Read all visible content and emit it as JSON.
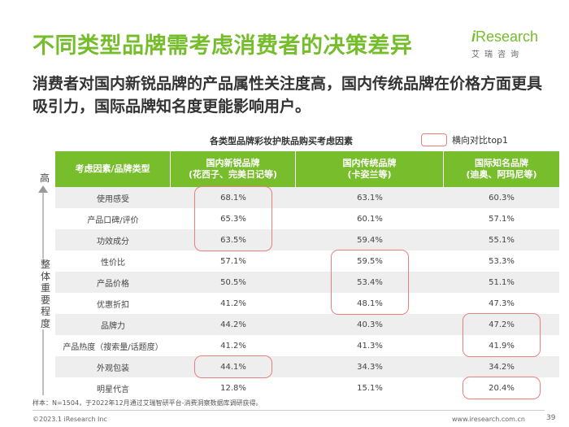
{
  "title": "不同类型品牌需考虑消费者的决策差异",
  "logo": {
    "main_i": "i",
    "main_rest": "Research",
    "sub": "艾瑞咨询"
  },
  "subtitle": "消费者对国内新锐品牌的产品属性关注度高，国内传统品牌在价格方面更具吸引力，国际品牌知名度更能影响用户。",
  "chart_title": "各类型品牌彩妆护肤品购买考虑因素",
  "legend": {
    "label": "横向对比top1",
    "color": "#e8817d"
  },
  "axis": {
    "top": "高",
    "label": "整体重要程度"
  },
  "colors": {
    "header": "#78bd2c",
    "title": "#76bd2c",
    "highlight": "#e8817d",
    "stripe": "#eeeeee"
  },
  "chart_data": {
    "type": "table",
    "title": "各类型品牌彩妆护肤品购买考虑因素",
    "columns": [
      {
        "line1": "考虑因素/品牌类型",
        "line2": ""
      },
      {
        "line1": "国内新锐品牌",
        "line2": "(花西子、完美日记等)"
      },
      {
        "line1": "国内传统品牌",
        "line2": "(卡姿兰等)"
      },
      {
        "line1": "国际知名品牌",
        "line2": "(迪奥、阿玛尼等)"
      }
    ],
    "rows": [
      {
        "factor": "使用感受",
        "values": [
          "68.1%",
          "63.1%",
          "60.3%"
        ]
      },
      {
        "factor": "产品口碑/评价",
        "values": [
          "65.3%",
          "60.1%",
          "57.1%"
        ]
      },
      {
        "factor": "功效成分",
        "values": [
          "63.5%",
          "59.4%",
          "55.1%"
        ]
      },
      {
        "factor": "性价比",
        "values": [
          "57.1%",
          "59.5%",
          "53.3%"
        ]
      },
      {
        "factor": "产品价格",
        "values": [
          "50.5%",
          "53.4%",
          "51.1%"
        ]
      },
      {
        "factor": "优惠折扣",
        "values": [
          "41.2%",
          "48.1%",
          "47.3%"
        ]
      },
      {
        "factor": "品牌力",
        "values": [
          "44.2%",
          "40.3%",
          "47.2%"
        ]
      },
      {
        "factor": "产品热度（搜索量/话题度）",
        "values": [
          "41.2%",
          "41.3%",
          "41.9%"
        ]
      },
      {
        "factor": "外观包装",
        "values": [
          "44.1%",
          "34.3%",
          "34.2%"
        ]
      },
      {
        "factor": "明星代言",
        "values": [
          "12.8%",
          "15.1%",
          "20.4%"
        ]
      }
    ],
    "highlights": [
      {
        "col": 1,
        "row_start": 0,
        "row_end": 2
      },
      {
        "col": 2,
        "row_start": 3,
        "row_end": 5
      },
      {
        "col": 3,
        "row_start": 6,
        "row_end": 7
      },
      {
        "col": 1,
        "row_start": 8,
        "row_end": 8
      },
      {
        "col": 3,
        "row_start": 9,
        "row_end": 9
      }
    ]
  },
  "footnote": "样本：N=1504，于2022年12月通过艾瑞智研平台-消费洞察数据库调研获得。",
  "copyright": "©2023.1 iResearch Inc",
  "website": "www.iresearch.com.cn",
  "page_number": "39"
}
